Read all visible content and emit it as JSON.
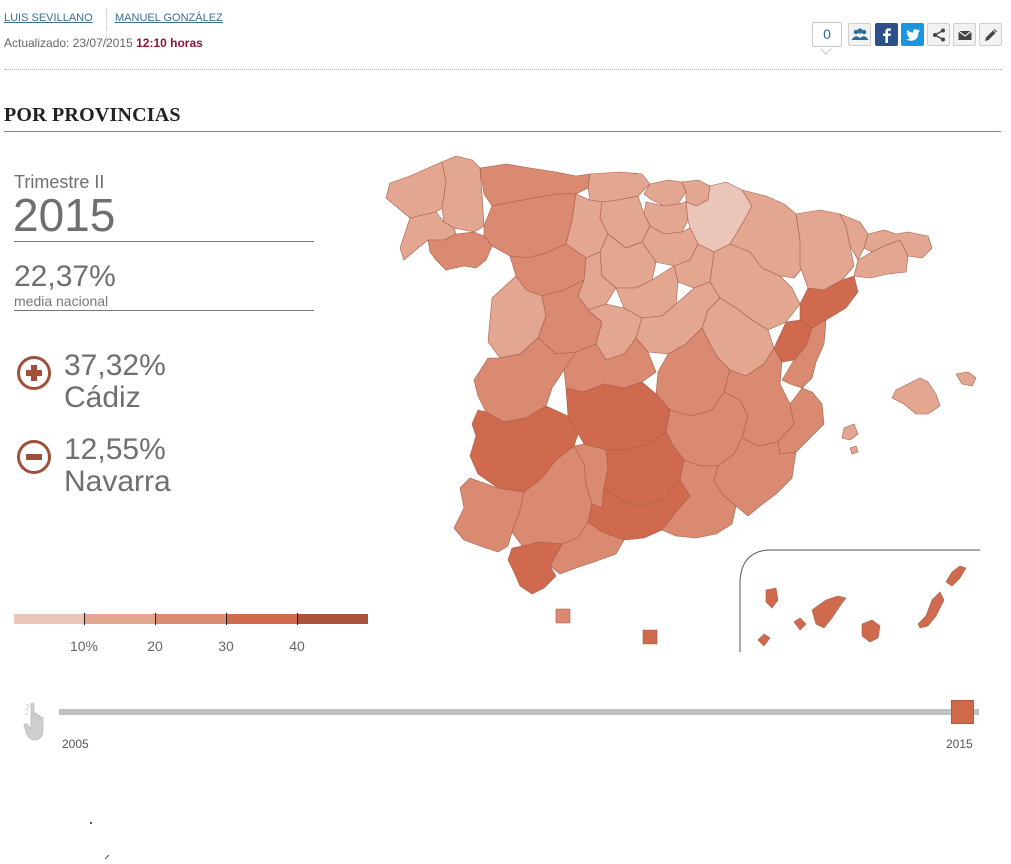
{
  "byline": {
    "authors": [
      "LUIS SEVILLANO",
      "MANUEL GONZÁLEZ"
    ],
    "updated_label": "Actualizado: 23/07/2015",
    "updated_time": "12:10 horas"
  },
  "share": {
    "comment_count": "0",
    "buttons": [
      "community-icon",
      "facebook-icon",
      "twitter-icon",
      "share-icon",
      "email-icon",
      "edit-icon"
    ]
  },
  "section": {
    "title": "POR PROVINCIAS"
  },
  "stats": {
    "period": "Trimestre II",
    "year": "2015",
    "national_average": "22,37%",
    "national_average_label": "media nacional",
    "max": {
      "value": "37,32%",
      "province": "Cádiz",
      "icon": "plus-circle-icon"
    },
    "min": {
      "value": "12,55%",
      "province": "Navarra",
      "icon": "minus-circle-icon"
    }
  },
  "legend": {
    "colors": [
      "#eac5b8",
      "#e2a691",
      "#d98a70",
      "#d06a4e",
      "#a9523b"
    ],
    "ticks": [
      "10%",
      "20",
      "30",
      "40"
    ]
  },
  "timeline": {
    "start": "2005",
    "end": "2015",
    "position": 1.0
  }
}
